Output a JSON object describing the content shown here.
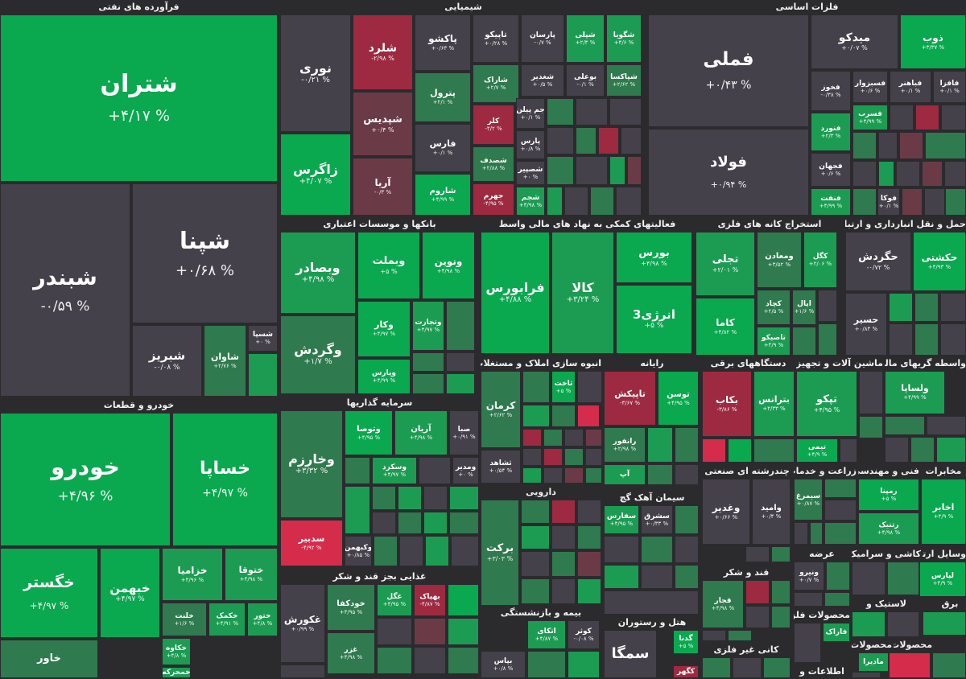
{
  "colors": {
    "up3": "#0aa84f",
    "up2": "#1c9c52",
    "up1": "#2f7a4f",
    "flat": "#45414a",
    "dn1": "#6b3a47",
    "dn2": "#9e2a41",
    "dn3": "#d62c4c"
  },
  "sectors": [
    {
      "key": "naft",
      "title": "فرآورده های نفتی"
    },
    {
      "key": "shimi",
      "title": "شیمیایی"
    },
    {
      "key": "felezat",
      "title": "فلزات اساسی"
    },
    {
      "key": "bank",
      "title": "بانکها و موسسات اعتباری"
    },
    {
      "key": "maali",
      "title": "فعالیتهای کمکی به نهاد های مالی واسط"
    },
    {
      "key": "kane",
      "title": "استخراج کانه های فلزی"
    },
    {
      "key": "haml",
      "title": "حمل و نقل انبارداری و ارتباطات"
    },
    {
      "key": "khodro",
      "title": "خودرو و قطعات"
    },
    {
      "key": "sarmaye",
      "title": "سرمایه گذاریها"
    },
    {
      "key": "anboh",
      "title": "انبوه سازی املاک و مستغلات"
    },
    {
      "key": "rayane",
      "title": "رایانه"
    },
    {
      "key": "barghi",
      "title": "دستگاههای برقی"
    },
    {
      "key": "mashin",
      "title": "ماشین آلات و تجهیزات"
    },
    {
      "key": "vasete",
      "title": "واسطه گریهای مالی و"
    },
    {
      "key": "chand",
      "title": "چندرشته ای صنعتی"
    },
    {
      "key": "zeraat",
      "title": "زراعت و خدمات"
    },
    {
      "key": "fanni",
      "title": "فنی و مهندسی"
    },
    {
      "key": "mokhaberat",
      "title": "مخابرات"
    },
    {
      "key": "daroo",
      "title": "دارویی"
    },
    {
      "key": "siman",
      "title": "سیمان آهک گچ"
    },
    {
      "key": "ghaza",
      "title": "غذایی بجز قند و شکر"
    },
    {
      "key": "ghand",
      "title": "قند و شکر"
    },
    {
      "key": "arze",
      "title": "عرضه"
    },
    {
      "key": "kashi",
      "title": "کاشی و سرامیک"
    },
    {
      "key": "vasayel",
      "title": "وسایل ارتباطی"
    },
    {
      "key": "plastic",
      "title": "لاستیک و"
    },
    {
      "key": "bime",
      "title": "بیمه و بازنشستگی"
    },
    {
      "key": "hotel",
      "title": "هتل و رستوران"
    },
    {
      "key": "ghair",
      "title": "کانی غیر فلزی"
    },
    {
      "key": "mahsoolat_felezi",
      "title": "محصولات فلزی"
    },
    {
      "key": "mahsoolat1",
      "title": "محصولات"
    },
    {
      "key": "mahsoolat2",
      "title": "محصولات"
    },
    {
      "key": "ettelaat",
      "title": "اطلاعات و"
    },
    {
      "key": "bargh2",
      "title": "برق"
    }
  ],
  "symbols": [
    {
      "key": "shetran",
      "name": "شتران",
      "change": "+۴/۱۷ %",
      "c": "up3"
    },
    {
      "key": "shabandar",
      "name": "شبندر",
      "change": "-۰/۵۹ %",
      "c": "flat"
    },
    {
      "key": "shepna",
      "name": "شپنا",
      "change": "+۰/۶۸ %",
      "c": "flat"
    },
    {
      "key": "shabriz",
      "name": "شبریز",
      "change": "-۰/۰۸ %",
      "c": "flat"
    },
    {
      "key": "shavan",
      "name": "شاوان",
      "change": "+۲/۷۶ %",
      "c": "up1"
    },
    {
      "key": "shesapa",
      "name": "شسپا",
      "change": "+۰ %",
      "c": "flat"
    },
    {
      "key": "noori",
      "name": "نوری",
      "change": "-۰/۲۱ %",
      "c": "flat"
    },
    {
      "key": "shalard",
      "name": "شلرد",
      "change": "-۲/۹۸ %",
      "c": "dn2"
    },
    {
      "key": "shapdis",
      "name": "شپدیس",
      "change": "+۰/۴ %",
      "c": "dn1"
    },
    {
      "key": "zagros",
      "name": "زاگرس",
      "change": "+۴/۰۷ %",
      "c": "up3"
    },
    {
      "key": "arya",
      "name": "آریا",
      "change": "-۰/۳ %",
      "c": "dn1"
    },
    {
      "key": "pakhsho",
      "name": "پاکشو",
      "change": "+۰/۶۳ %",
      "c": "flat"
    },
    {
      "key": "petrol",
      "name": "پترول",
      "change": "+۲/۱ %",
      "c": "up1"
    },
    {
      "key": "fars",
      "name": "فارس",
      "change": "+۰/۱ %",
      "c": "flat"
    },
    {
      "key": "sharoom",
      "name": "شاروم",
      "change": "+۴/۹۹ %",
      "c": "up3"
    },
    {
      "key": "tapiko",
      "name": "تاپیکو",
      "change": "+۰/۲۸ %",
      "c": "flat"
    },
    {
      "key": "parsan",
      "name": "پارسان",
      "change": "-۰/۷ %",
      "c": "flat"
    },
    {
      "key": "shapli",
      "name": "شپلی",
      "change": "+۲/۳ %",
      "c": "up2"
    },
    {
      "key": "shegooya",
      "name": "شگویا",
      "change": "+۴/۶ %",
      "c": "up2"
    },
    {
      "key": "sharak",
      "name": "شاراک",
      "change": "+۲/۷ %",
      "c": "up1"
    },
    {
      "key": "shaghadir",
      "name": "شغدیر",
      "change": "+۰/۵ %",
      "c": "flat"
    },
    {
      "key": "booali",
      "name": "بوعلی",
      "change": "-۰/۱ %",
      "c": "flat"
    },
    {
      "key": "shepaksa",
      "name": "شپاکسا",
      "change": "+۲/۶۲ %",
      "c": "up1"
    },
    {
      "key": "kalor",
      "name": "کلر",
      "change": "-۴/۲ %",
      "c": "dn2"
    },
    {
      "key": "jampilan",
      "name": "جم پیلن",
      "change": "+۰/۱ %",
      "c": "flat"
    },
    {
      "key": "paris",
      "name": "پارس",
      "change": "+۰/۸ %",
      "c": "flat"
    },
    {
      "key": "shesadaf",
      "name": "شصدف",
      "change": "+۲/۸۸ %",
      "c": "up1"
    },
    {
      "key": "shapir",
      "name": "شصپیر",
      "change": "+۰ %",
      "c": "flat"
    },
    {
      "key": "jahrom",
      "name": "جهرم",
      "change": "-۴/۹۵ %",
      "c": "dn2"
    },
    {
      "key": "sheghm",
      "name": "شجم",
      "change": "+۴/۹۸ %",
      "c": "up2"
    },
    {
      "key": "fameli",
      "name": "فملی",
      "change": "+۰/۴۳ %",
      "c": "flat"
    },
    {
      "key": "foolad",
      "name": "فولاد",
      "change": "+۰/۹۴ %",
      "c": "flat"
    },
    {
      "key": "midko",
      "name": "میدکو",
      "change": "+۰/۰۷ %",
      "c": "flat"
    },
    {
      "key": "zob",
      "name": "ذوب",
      "change": "+۳/۳۷ %",
      "c": "up3"
    },
    {
      "key": "fekhooz",
      "name": "فخوز",
      "change": "-۰/۳۸ %",
      "c": "flat"
    },
    {
      "key": "fasazar",
      "name": "فسبزوار",
      "change": "+۰/۶ %",
      "c": "flat"
    },
    {
      "key": "fajahar",
      "name": "فباهنر",
      "change": "+۰/۱ %",
      "c": "flat"
    },
    {
      "key": "fafazr",
      "name": "فافزا",
      "change": "+۰/۱ %",
      "c": "flat"
    },
    {
      "key": "fasrab",
      "name": "فسرب",
      "change": "+۴/۹۹ %",
      "c": "up2"
    },
    {
      "key": "fanvard",
      "name": "فنورد",
      "change": "+۲/۳ %",
      "c": "up2"
    },
    {
      "key": "fajahan",
      "name": "فجهان",
      "change": "+۰/۶ %",
      "c": "flat"
    },
    {
      "key": "fanft",
      "name": "فنفت",
      "change": "+۴/۹۹ %",
      "c": "up2"
    },
    {
      "key": "fooka",
      "name": "فوکا",
      "change": "+۰/۱ %",
      "c": "flat"
    },
    {
      "key": "vesaderat",
      "name": "وبصادر",
      "change": "+۴/۹۸ %",
      "c": "up2"
    },
    {
      "key": "vabmellat",
      "name": "وبملت",
      "change": "+۵ %",
      "c": "up3"
    },
    {
      "key": "vanovin",
      "name": "ونوین",
      "change": "+۴/۹۸ %",
      "c": "up3"
    },
    {
      "key": "vakar",
      "name": "وکار",
      "change": "+۴/۹۷ %",
      "c": "up3"
    },
    {
      "key": "vatejarat",
      "name": "وتجارت",
      "change": "+۴/۹۷ %",
      "c": "up2"
    },
    {
      "key": "vagardesh",
      "name": "وگردش",
      "change": "+۱/۷ %",
      "c": "up1"
    },
    {
      "key": "vaparis",
      "name": "وپارس",
      "change": "+۴/۹۹ %",
      "c": "up3"
    },
    {
      "key": "farabours",
      "name": "فرابورس",
      "change": "+۴/۸۸ %",
      "c": "up3"
    },
    {
      "key": "kala",
      "name": "کالا",
      "change": "+۳/۲۴ %",
      "c": "up2"
    },
    {
      "key": "bours",
      "name": "بورس",
      "change": "+۴/۹۸ %",
      "c": "up3"
    },
    {
      "key": "energy3",
      "name": "انرژی3",
      "change": "+۵ %",
      "c": "up3"
    },
    {
      "key": "tajali",
      "name": "تجلی",
      "change": "+۲/۰۱ %",
      "c": "up2"
    },
    {
      "key": "vamaaden",
      "name": "ومعادن",
      "change": "+۳/۵۲ %",
      "c": "up1"
    },
    {
      "key": "kegol",
      "name": "کگل",
      "change": "+۲/۰۶ %",
      "c": "up2"
    },
    {
      "key": "kama",
      "name": "کاما",
      "change": "+۴/۸۲ %",
      "c": "up3"
    },
    {
      "key": "kechad",
      "name": "کچاد",
      "change": "+۲/۵ %",
      "c": "up1"
    },
    {
      "key": "aapal",
      "name": "اپال",
      "change": "+۱/۶ %",
      "c": "up1"
    },
    {
      "key": "tapiko2",
      "name": "تاصیکو",
      "change": "+۴/۹ %",
      "c": "up2"
    },
    {
      "key": "hagardesh",
      "name": "حگردش",
      "change": "-۰/۷۲ %",
      "c": "flat"
    },
    {
      "key": "hakashti",
      "name": "حکشتی",
      "change": "+۴/۹۳ %",
      "c": "up3"
    },
    {
      "key": "hasir",
      "name": "حسیر",
      "change": "+۰/۸۴ %",
      "c": "flat"
    },
    {
      "key": "khodro",
      "name": "خودرو",
      "change": "+۴/۹۶ %",
      "c": "up3"
    },
    {
      "key": "khsapa",
      "name": "خساپا",
      "change": "+۴/۹۷ %",
      "c": "up3"
    },
    {
      "key": "khegostar",
      "name": "خگستر",
      "change": "+۴/۹۷ %",
      "c": "up3"
    },
    {
      "key": "khebahman",
      "name": "خبهمن",
      "change": "+۴/۹۷ %",
      "c": "up3"
    },
    {
      "key": "khezamia",
      "name": "خزامیا",
      "change": "+۴/۹۶ %",
      "c": "up2"
    },
    {
      "key": "khetoga",
      "name": "ختوقا",
      "change": "+۴/۹۸ %",
      "c": "up2"
    },
    {
      "key": "khalot",
      "name": "خلنت",
      "change": "+۱/۶ %",
      "c": "up1"
    },
    {
      "key": "khakmak",
      "name": "خکمک",
      "change": "+۴/۹۱ %",
      "c": "up2"
    },
    {
      "key": "khetor",
      "name": "ختور",
      "change": "+۴/۸ %",
      "c": "up2"
    },
    {
      "key": "khakave",
      "name": "خکاوه",
      "change": "+۴/۸ %",
      "c": "up2"
    },
    {
      "key": "khomehr",
      "name": "خمحرکه",
      "change": "",
      "c": "up2"
    },
    {
      "key": "khavar",
      "name": "خاور",
      "change": "",
      "c": "up1"
    },
    {
      "key": "vakharazm",
      "name": "وخارزم",
      "change": "+۳/۳۲ %",
      "c": "up1"
    },
    {
      "key": "vatoosa",
      "name": "وتوصا",
      "change": "+۴/۹۵ %",
      "c": "up3"
    },
    {
      "key": "aryan",
      "name": "آریان",
      "change": "+۴/۹۸ %",
      "c": "up2"
    },
    {
      "key": "saba",
      "name": "صبا",
      "change": "+۰/۹۱ %",
      "c": "flat"
    },
    {
      "key": "vaskor",
      "name": "وسکرد",
      "change": "+۴/۹۷ %",
      "c": "up2"
    },
    {
      "key": "vamadir",
      "name": "ومدیر",
      "change": "+۰ %",
      "c": "flat"
    },
    {
      "key": "sadbir",
      "name": "سدبیر",
      "change": "-۴/۹۲ %",
      "c": "dn3"
    },
    {
      "key": "vakbahman",
      "name": "وکبهمن",
      "change": "+۰/۸۵ %",
      "c": "flat"
    },
    {
      "key": "kerman",
      "name": "کرمان",
      "change": "+۲/۶۲ %",
      "c": "up1"
    },
    {
      "key": "sakht",
      "name": "ثاخت",
      "change": "+۵ %",
      "c": "up3"
    },
    {
      "key": "teshahad",
      "name": "ثشاهد",
      "change": "+۰/۵۴ %",
      "c": "flat"
    },
    {
      "key": "tapiksh",
      "name": "تاپیکش",
      "change": "-۳/۶۷ %",
      "c": "dn2"
    },
    {
      "key": "toosan",
      "name": "توسن",
      "change": "+۴/۹۵ %",
      "c": "up3"
    },
    {
      "key": "ranfor",
      "name": "رانفور",
      "change": "+۲/۹۸ %",
      "c": "up1"
    },
    {
      "key": "ap",
      "name": "آپ",
      "change": "+۴/۸ %",
      "c": "up2"
    },
    {
      "key": "bekab",
      "name": "بکاب",
      "change": "-۳/۸۶ %",
      "c": "dn2"
    },
    {
      "key": "betrans",
      "name": "بترانس",
      "change": "+۴/۳۳ %",
      "c": "up2"
    },
    {
      "key": "tapko",
      "name": "تپکو",
      "change": "+۴/۹۵ %",
      "c": "up2"
    },
    {
      "key": "timi",
      "name": "تیمی",
      "change": "+۴/۹ %",
      "c": "up3"
    },
    {
      "key": "vasapa",
      "name": "ولساپا",
      "change": "+۴/۹۹ %",
      "c": "up2"
    },
    {
      "key": "vaghadir",
      "name": "وغدیر",
      "change": "+۰/۶۶ %",
      "c": "flat"
    },
    {
      "key": "vamid",
      "name": "وامید",
      "change": "+۰/۴ %",
      "c": "flat"
    },
    {
      "key": "simorgh",
      "name": "سیمرغ",
      "change": "+۰/۸۷ %",
      "c": "up1"
    },
    {
      "key": "rampana",
      "name": "رمپنا",
      "change": "+۵ %",
      "c": "up3"
    },
    {
      "key": "rotnik",
      "name": "رتنیک",
      "change": "+۴/۹۸ %",
      "c": "up2"
    },
    {
      "key": "akhaber",
      "name": "اخابر",
      "change": "+۴/۹ %",
      "c": "up3"
    },
    {
      "key": "barkat",
      "name": "برکت",
      "change": "+۳/۰۳ %",
      "c": "up1"
    },
    {
      "key": "safarsi",
      "name": "سفارس",
      "change": "+۴/۹۵ %",
      "c": "up2"
    },
    {
      "key": "mashregh",
      "name": "سشرق",
      "change": "+۰/۳۳ %",
      "c": "flat"
    },
    {
      "key": "ghakorosh",
      "name": "غکورش",
      "change": "+۰/۹۹ %",
      "c": "flat"
    },
    {
      "key": "khodkafa",
      "name": "خودکفا",
      "change": "+۴/۹۵ %",
      "c": "up1"
    },
    {
      "key": "ghogol",
      "name": "غگل",
      "change": "+۴/۹۵ %",
      "c": "up2"
    },
    {
      "key": "bahak",
      "name": "بهپاک",
      "change": "-۴/۸۷ %",
      "c": "dn2"
    },
    {
      "key": "ghaz",
      "name": "غزر",
      "change": "+۴/۹۸ %",
      "c": "up1"
    },
    {
      "key": "ghajar",
      "name": "قجار",
      "change": "+۴/۹۸ %",
      "c": "up1"
    },
    {
      "key": "vanirou",
      "name": "ونیرو",
      "change": "+۰/۷ %",
      "c": "flat"
    },
    {
      "key": "lapars",
      "name": "لپارس",
      "change": "+۴/۹ %",
      "c": "up3"
    },
    {
      "key": "atka",
      "name": "اتکای",
      "change": "+۴/۸۷ %",
      "c": "up2"
    },
    {
      "key": "kosar",
      "name": "کوثر",
      "change": "-۰/۰۸ %",
      "c": "flat"
    },
    {
      "key": "bapas",
      "name": "بپاس",
      "change": "+۰/۸ %",
      "c": "flat"
    },
    {
      "key": "sagma",
      "name": "سمگا",
      "change": "",
      "c": "flat"
    },
    {
      "key": "gadna",
      "name": "گدنا",
      "change": "+۵ %",
      "c": "up3"
    },
    {
      "key": "kegehr",
      "name": "کگهر",
      "change": "",
      "c": "dn2"
    },
    {
      "key": "farak",
      "name": "فاراک",
      "change": "+۴/۹ %",
      "c": "up2"
    },
    {
      "key": "madiran",
      "name": "مادیرا",
      "change": "+۴/۹ %",
      "c": "up2"
    }
  ],
  "legend_levels": [
    "up3",
    "up2",
    "up1",
    "flat",
    "dn1",
    "dn2",
    "dn3"
  ]
}
